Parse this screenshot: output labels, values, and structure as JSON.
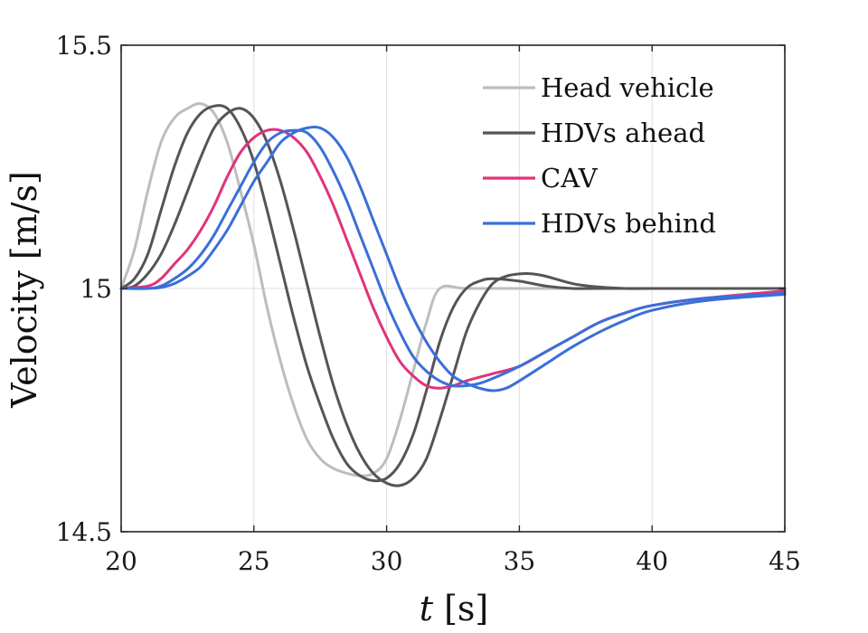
{
  "chart_data": {
    "type": "line",
    "xlabel_var": "t",
    "xlabel_unit": "[s]",
    "ylabel": "Velocity [m/s]",
    "xlim": [
      20,
      45
    ],
    "ylim": [
      14.5,
      15.5
    ],
    "xticks": [
      20,
      25,
      30,
      35,
      40,
      45
    ],
    "yticks": [
      14.5,
      15,
      15.5
    ],
    "ytick_labels": [
      "14.5",
      "15",
      "15.5"
    ],
    "grid": true,
    "legend_position": "top-right",
    "legend": [
      {
        "name": "Head vehicle",
        "color": "#bdbdbd"
      },
      {
        "name": "HDVs ahead",
        "color": "#555555"
      },
      {
        "name": "CAV",
        "color": "#e0337a"
      },
      {
        "name": "HDVs behind",
        "color": "#3a6fd8"
      }
    ],
    "series": [
      {
        "name": "Head vehicle",
        "color": "#bdbdbd",
        "x": [
          20,
          20.5,
          21,
          21.5,
          22,
          22.5,
          23,
          23.5,
          24,
          24.5,
          25,
          25.5,
          26,
          26.5,
          27,
          27.5,
          28,
          28.5,
          29,
          29.5,
          30,
          30.5,
          31,
          31.5,
          32,
          33,
          35,
          40,
          45
        ],
        "y": [
          15.0,
          15.08,
          15.2,
          15.3,
          15.35,
          15.37,
          15.38,
          15.36,
          15.3,
          15.2,
          15.09,
          14.96,
          14.85,
          14.76,
          14.69,
          14.65,
          14.63,
          14.62,
          14.615,
          14.62,
          14.65,
          14.73,
          14.83,
          14.93,
          15.0,
          15.0,
          15.0,
          15.0,
          15.0
        ]
      },
      {
        "name": "HDVs ahead",
        "color": "#555555",
        "x": [
          20,
          20.5,
          21,
          21.5,
          22,
          22.5,
          23,
          23.5,
          24,
          24.5,
          25,
          25.5,
          26,
          26.5,
          27,
          27.5,
          28,
          28.5,
          29,
          29.5,
          30,
          30.5,
          31,
          31.5,
          32,
          32.5,
          33,
          33.5,
          34,
          35,
          36,
          37,
          38,
          40,
          45
        ],
        "y": [
          15.0,
          15.02,
          15.07,
          15.16,
          15.25,
          15.32,
          15.36,
          15.375,
          15.37,
          15.33,
          15.26,
          15.16,
          15.05,
          14.94,
          14.84,
          14.76,
          14.69,
          14.64,
          14.615,
          14.605,
          14.61,
          14.64,
          14.7,
          14.79,
          14.89,
          14.96,
          15.0,
          15.015,
          15.02,
          15.015,
          15.005,
          15.0,
          15.0,
          15.0,
          15.0
        ]
      },
      {
        "name": "HDVs ahead",
        "color": "#555555",
        "x": [
          20,
          20.5,
          21,
          21.5,
          22,
          22.5,
          23,
          23.5,
          24,
          24.5,
          25,
          25.5,
          26,
          26.5,
          27,
          27.5,
          28,
          28.5,
          29,
          29.5,
          30,
          30.5,
          31,
          31.5,
          32,
          32.5,
          33,
          33.5,
          34,
          34.5,
          35,
          35.5,
          36,
          37,
          38,
          39,
          40,
          45
        ],
        "y": [
          15.0,
          15.005,
          15.03,
          15.07,
          15.13,
          15.2,
          15.27,
          15.33,
          15.36,
          15.37,
          15.35,
          15.3,
          15.22,
          15.12,
          15.01,
          14.9,
          14.8,
          14.72,
          14.66,
          14.62,
          14.6,
          14.595,
          14.61,
          14.65,
          14.73,
          14.82,
          14.91,
          14.97,
          15.01,
          15.025,
          15.03,
          15.03,
          15.025,
          15.01,
          15.003,
          15.0,
          15.0,
          15.0
        ]
      },
      {
        "name": "CAV",
        "color": "#e0337a",
        "x": [
          20,
          21,
          21.5,
          22,
          22.5,
          23,
          23.5,
          24,
          24.5,
          25,
          25.5,
          26,
          26.5,
          27,
          27.5,
          28,
          28.5,
          29,
          29.5,
          30,
          30.5,
          31,
          31.5,
          32,
          32.5,
          33,
          34,
          35,
          36,
          37,
          38,
          39,
          40,
          42,
          45
        ],
        "y": [
          15.0,
          15.005,
          15.02,
          15.05,
          15.08,
          15.12,
          15.17,
          15.23,
          15.28,
          15.31,
          15.325,
          15.325,
          15.31,
          15.28,
          15.23,
          15.17,
          15.1,
          15.03,
          14.96,
          14.9,
          14.85,
          14.82,
          14.8,
          14.795,
          14.8,
          14.81,
          14.825,
          14.84,
          14.87,
          14.9,
          14.93,
          14.95,
          14.965,
          14.98,
          14.995
        ]
      },
      {
        "name": "HDVs behind",
        "color": "#3a6fd8",
        "x": [
          20,
          21,
          21.5,
          22,
          22.5,
          23,
          23.5,
          24,
          24.5,
          25,
          25.5,
          26,
          26.5,
          27,
          27.5,
          28,
          28.5,
          29,
          29.5,
          30,
          30.5,
          31,
          31.5,
          32,
          32.5,
          33,
          33.5,
          34,
          35,
          36,
          37,
          38,
          39,
          40,
          42,
          45
        ],
        "y": [
          15.0,
          15.0,
          15.005,
          15.02,
          15.04,
          15.07,
          15.11,
          15.16,
          15.21,
          15.26,
          15.3,
          15.32,
          15.325,
          15.32,
          15.29,
          15.24,
          15.18,
          15.11,
          15.04,
          14.97,
          14.91,
          14.86,
          14.83,
          14.81,
          14.8,
          14.8,
          14.805,
          14.815,
          14.84,
          14.87,
          14.9,
          14.93,
          14.95,
          14.965,
          14.98,
          14.99
        ]
      },
      {
        "name": "HDVs behind",
        "color": "#3a6fd8",
        "x": [
          20,
          21,
          21.5,
          22,
          22.5,
          23,
          23.5,
          24,
          24.5,
          25,
          25.5,
          26,
          26.5,
          27,
          27.5,
          28,
          28.5,
          29,
          29.5,
          30,
          30.5,
          31,
          31.5,
          32,
          32.5,
          33,
          33.5,
          34,
          34.5,
          35,
          36,
          37,
          38,
          39,
          40,
          42,
          45
        ],
        "y": [
          15.0,
          15.0,
          15.002,
          15.01,
          15.025,
          15.045,
          15.08,
          15.12,
          15.17,
          15.22,
          15.26,
          15.3,
          15.32,
          15.33,
          15.33,
          15.31,
          15.27,
          15.21,
          15.14,
          15.07,
          15.0,
          14.94,
          14.89,
          14.85,
          14.82,
          14.805,
          14.795,
          14.79,
          14.795,
          14.81,
          14.845,
          14.88,
          14.91,
          14.935,
          14.955,
          14.975,
          14.988
        ]
      }
    ]
  }
}
